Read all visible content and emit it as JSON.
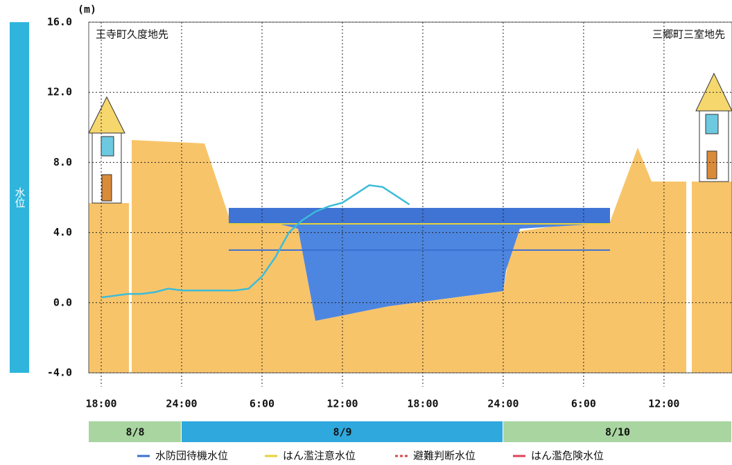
{
  "chart_data": {
    "type": "line",
    "unit": "(m)",
    "y_label": "水位",
    "locations": [
      "王寺町久度地先",
      "三郷町三室地先"
    ],
    "categories": [
      null,
      "18:00",
      null,
      null,
      null,
      null,
      null,
      "24:00",
      null,
      null,
      null,
      null,
      null,
      "6:00",
      null,
      null,
      null,
      null,
      null,
      "12:00",
      null,
      null,
      null,
      null,
      null,
      "18:00",
      null,
      null,
      null,
      null,
      null,
      "24:00",
      null,
      null,
      null,
      null,
      null,
      "6:00",
      null,
      null,
      null,
      null,
      null,
      "12:00",
      null,
      null,
      null,
      null,
      null
    ],
    "dates": [
      "8/8",
      "8/9",
      "8/10"
    ],
    "series": [
      {
        "name": "水位",
        "color": "#3bbcd8",
        "values": [
          null,
          0.3,
          0.4,
          0.5,
          0.5,
          0.6,
          0.8,
          0.7,
          0.7,
          0.7,
          0.7,
          0.7,
          0.8,
          1.5,
          2.6,
          4.0,
          4.7,
          5.2,
          5.5,
          5.7,
          6.2,
          6.7,
          6.6,
          6.1,
          5.6,
          null,
          null,
          null,
          null,
          null,
          null,
          null,
          null,
          null,
          null,
          null,
          null,
          null,
          null,
          null,
          null,
          null,
          null,
          null,
          null,
          null,
          null,
          null,
          null
        ]
      }
    ],
    "levels": [
      {
        "name": "水防団待機水位",
        "color": "#3c6fd0",
        "dash": false,
        "value": 3.0
      },
      {
        "name": "はん濫注意水位",
        "color": "#e8d23a",
        "dash": false,
        "value": 4.5
      },
      {
        "name": "避難判断水位",
        "color": "#d84a4a",
        "dash": true,
        "value": null
      },
      {
        "name": "はん濫危険水位",
        "color": "#e0405a",
        "dash": false,
        "value": null
      }
    ],
    "ylim": [
      -4,
      16
    ],
    "yticks": [
      {
        "value": -4,
        "label": "-4.0"
      },
      {
        "value": 0,
        "label": "0.0"
      },
      {
        "value": 4,
        "label": "4.0"
      },
      {
        "value": 8,
        "label": "8.0"
      },
      {
        "value": 12,
        "label": "12.0"
      },
      {
        "value": 16,
        "label": "16.0"
      }
    ],
    "grid": true
  }
}
